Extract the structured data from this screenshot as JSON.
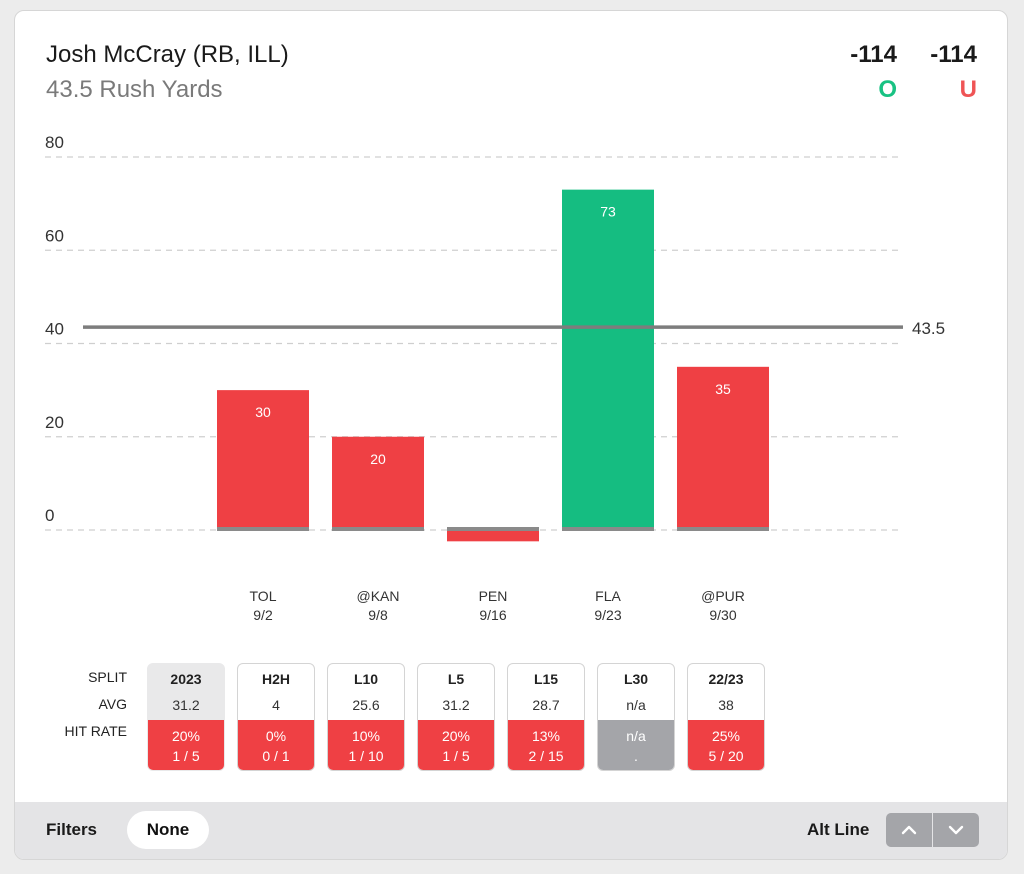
{
  "header": {
    "title": "Josh McCray (RB, ILL)",
    "subtitle": "43.5 Rush Yards",
    "over_odds": "-114",
    "under_odds": "-114",
    "over_label": "O",
    "under_label": "U"
  },
  "colors": {
    "over": "#15bd81",
    "under": "#ef4044",
    "neutral": "#a4a5a9",
    "line": "#7d7d7d"
  },
  "chart_data": {
    "type": "bar",
    "categories": [
      "TOL",
      "@KAN",
      "PEN",
      "FLA",
      "@PUR"
    ],
    "dates": [
      "9/2",
      "9/8",
      "9/16",
      "9/23",
      "9/30"
    ],
    "values": [
      30,
      20,
      -2,
      73,
      35
    ],
    "value_labels": [
      "30",
      "20",
      "",
      "73",
      "35"
    ],
    "yticks": [
      0,
      20,
      40,
      60,
      80
    ],
    "ylim": [
      -3,
      80
    ],
    "threshold": 43.5,
    "threshold_label": "43.5",
    "grid": true
  },
  "splits": {
    "row_labels": [
      "SPLIT",
      "AVG",
      "HIT RATE"
    ],
    "columns": [
      {
        "label": "2023",
        "avg": "31.2",
        "hit_pct": "20%",
        "hit_frac": "1 / 5",
        "active": true,
        "status": "under"
      },
      {
        "label": "H2H",
        "avg": "4",
        "hit_pct": "0%",
        "hit_frac": "0 / 1",
        "active": false,
        "status": "under"
      },
      {
        "label": "L10",
        "avg": "25.6",
        "hit_pct": "10%",
        "hit_frac": "1 / 10",
        "active": false,
        "status": "under"
      },
      {
        "label": "L5",
        "avg": "31.2",
        "hit_pct": "20%",
        "hit_frac": "1 / 5",
        "active": false,
        "status": "under"
      },
      {
        "label": "L15",
        "avg": "28.7",
        "hit_pct": "13%",
        "hit_frac": "2 / 15",
        "active": false,
        "status": "under"
      },
      {
        "label": "L30",
        "avg": "n/a",
        "hit_pct": "n/a",
        "hit_frac": ".",
        "active": false,
        "status": "na"
      },
      {
        "label": "22/23",
        "avg": "38",
        "hit_pct": "25%",
        "hit_frac": "5 / 20",
        "active": false,
        "status": "under"
      }
    ]
  },
  "footer": {
    "filters_label": "Filters",
    "filters_value": "None",
    "alt_line_label": "Alt Line"
  },
  "icons": {
    "alt_up": "chevron-up-icon",
    "alt_down": "chevron-down-icon"
  }
}
